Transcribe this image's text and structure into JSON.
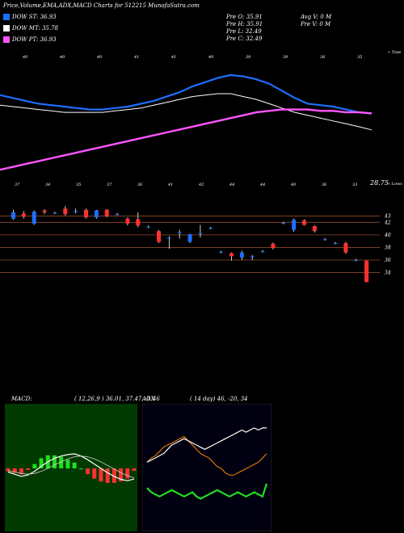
{
  "header": {
    "title": "Price,Volume,EMA,ADX,MACD Charts for 512215 MunafaSutra.com",
    "legend": [
      {
        "label": "DOW ST: 36.93",
        "color": "#1e6fff"
      },
      {
        "label": "DOW MT: 35.78",
        "color": "#ffffff"
      },
      {
        "label": "DOW PT: 36.93",
        "color": "#ff55ff"
      }
    ],
    "stats_left": [
      "Pre  O: 35.91",
      "Pre  H: 35.91",
      "Pre  L: 32.49",
      "Pre  C: 32.49"
    ],
    "stats_right": [
      "Avg V: 0  M",
      "Pre  V: 0  M"
    ]
  },
  "price_panel": {
    "top_note": "« Tops",
    "bottom_note": "« Lows",
    "low_value": "28.75",
    "top_labels": [
      "40",
      "40",
      "40",
      "41",
      "41",
      "40",
      "39",
      "39",
      "38",
      "35"
    ],
    "bottom_labels": [
      "37",
      "34",
      "35",
      "37",
      "36",
      "41",
      "42",
      "44",
      "44",
      "40",
      "36",
      "33"
    ]
  },
  "candle_panel": {
    "axis_labels": [
      "43",
      "42",
      "40",
      "38",
      "36",
      "34"
    ],
    "colors": {
      "up": "#1e6fff",
      "down": "#ff3030"
    }
  },
  "macd_panel": {
    "label": "MACD:",
    "values": "( 12,26,9 ) 36.01, 37.47, -1.46"
  },
  "adx_panel": {
    "label": "ADX",
    "values": "( 14  day) 46,  -20,  34"
  },
  "chart_data": [
    {
      "type": "line",
      "title": "Price,Volume,EMA,ADX,MACD Charts for 512215 MunafaSutra.com",
      "series": [
        {
          "name": "DOW ST",
          "values": [
            38.2,
            38.0,
            37.8,
            37.6,
            37.5,
            37.4,
            37.3,
            37.2,
            37.2,
            37.3,
            37.4,
            37.6,
            37.8,
            38.1,
            38.4,
            38.8,
            39.1,
            39.4,
            39.6,
            39.5,
            39.3,
            39.0,
            38.5,
            38.0,
            37.6,
            37.5,
            37.4,
            37.2,
            37.0,
            36.93
          ]
        },
        {
          "name": "DOW MT",
          "values": [
            37.5,
            37.4,
            37.3,
            37.2,
            37.1,
            37.0,
            37.0,
            37.0,
            37.0,
            37.1,
            37.2,
            37.3,
            37.5,
            37.7,
            37.9,
            38.1,
            38.2,
            38.3,
            38.3,
            38.1,
            37.9,
            37.6,
            37.3,
            37.0,
            36.8,
            36.6,
            36.4,
            36.2,
            36.0,
            35.78
          ]
        },
        {
          "name": "DOW PT",
          "values": [
            33.0,
            33.2,
            33.4,
            33.6,
            33.8,
            34.0,
            34.2,
            34.4,
            34.6,
            34.8,
            35.0,
            35.2,
            35.4,
            35.6,
            35.8,
            36.0,
            36.2,
            36.4,
            36.6,
            36.8,
            37.0,
            37.1,
            37.2,
            37.2,
            37.2,
            37.1,
            37.1,
            37.0,
            37.0,
            36.93
          ]
        }
      ]
    },
    {
      "type": "bar",
      "candles": [
        {
          "o": 42.6,
          "c": 43.6,
          "h": 44.0,
          "l": 42.4
        },
        {
          "o": 43.4,
          "c": 42.9,
          "h": 43.8,
          "l": 42.6
        },
        {
          "o": 41.8,
          "c": 43.7,
          "h": 43.9,
          "l": 41.6
        },
        {
          "o": 43.9,
          "c": 43.6,
          "h": 44.1,
          "l": 43.3
        },
        {
          "o": 43.5,
          "c": 43.5,
          "h": 43.7,
          "l": 43.3
        },
        {
          "o": 44.2,
          "c": 43.3,
          "h": 44.6,
          "l": 43.1
        },
        {
          "o": 43.8,
          "c": 43.8,
          "h": 44.2,
          "l": 43.4
        },
        {
          "o": 44.0,
          "c": 42.8,
          "h": 44.2,
          "l": 42.6
        },
        {
          "o": 42.8,
          "c": 43.9,
          "h": 44.0,
          "l": 42.6
        },
        {
          "o": 44.0,
          "c": 43.0,
          "h": 44.1,
          "l": 42.8
        },
        {
          "o": 43.3,
          "c": 43.3,
          "h": 43.5,
          "l": 43.1
        },
        {
          "o": 42.6,
          "c": 41.8,
          "h": 42.8,
          "l": 41.5
        },
        {
          "o": 42.5,
          "c": 41.5,
          "h": 43.6,
          "l": 41.2
        },
        {
          "o": 41.3,
          "c": 41.3,
          "h": 41.5,
          "l": 41.1
        },
        {
          "o": 40.6,
          "c": 38.9,
          "h": 40.8,
          "l": 38.7
        },
        {
          "o": 39.5,
          "c": 39.5,
          "h": 39.8,
          "l": 37.8
        },
        {
          "o": 40.4,
          "c": 40.4,
          "h": 40.8,
          "l": 39.4
        },
        {
          "o": 38.9,
          "c": 40.1,
          "h": 40.2,
          "l": 38.7
        },
        {
          "o": 40.3,
          "c": 40.3,
          "h": 41.6,
          "l": 39.6
        },
        {
          "o": 41.1,
          "c": 41.1,
          "h": 41.3,
          "l": 40.9
        },
        {
          "o": 37.3,
          "c": 37.3,
          "h": 37.5,
          "l": 37.1
        },
        {
          "o": 37.1,
          "c": 36.6,
          "h": 37.2,
          "l": 35.9
        },
        {
          "o": 36.4,
          "c": 37.2,
          "h": 37.5,
          "l": 36.0
        },
        {
          "o": 36.6,
          "c": 36.6,
          "h": 36.8,
          "l": 36.0
        },
        {
          "o": 37.4,
          "c": 37.4,
          "h": 37.6,
          "l": 37.2
        },
        {
          "o": 38.6,
          "c": 37.9,
          "h": 38.8,
          "l": 37.7
        },
        {
          "o": 41.9,
          "c": 41.9,
          "h": 42.1,
          "l": 41.7
        },
        {
          "o": 40.8,
          "c": 42.4,
          "h": 42.6,
          "l": 40.5
        },
        {
          "o": 42.3,
          "c": 41.6,
          "h": 42.5,
          "l": 41.5
        },
        {
          "o": 41.4,
          "c": 40.6,
          "h": 41.5,
          "l": 40.4
        },
        {
          "o": 39.3,
          "c": 39.3,
          "h": 39.5,
          "l": 39.1
        },
        {
          "o": 38.7,
          "c": 38.7,
          "h": 38.9,
          "l": 38.5
        },
        {
          "o": 38.7,
          "c": 37.2,
          "h": 38.9,
          "l": 37.0
        },
        {
          "o": 36.0,
          "c": 36.0,
          "h": 36.2,
          "l": 35.8
        },
        {
          "o": 35.91,
          "c": 32.49,
          "h": 35.91,
          "l": 32.49
        }
      ]
    },
    {
      "type": "line",
      "series": [
        {
          "name": "MACD",
          "values": [
            -0.5,
            -0.8,
            -1.1,
            -0.9,
            -0.4,
            0.3,
            0.9,
            1.4,
            1.7,
            1.9,
            2.0,
            1.7,
            1.2,
            0.6,
            0.0,
            -0.6,
            -1.1,
            -1.5,
            -1.7,
            -1.46
          ]
        },
        {
          "name": "Signal",
          "values": [
            -0.3,
            -0.5,
            -0.7,
            -0.8,
            -0.7,
            -0.4,
            0.0,
            0.5,
            0.9,
            1.3,
            1.6,
            1.7,
            1.6,
            1.3,
            0.9,
            0.4,
            -0.1,
            -0.6,
            -1.0,
            -1.3
          ]
        }
      ]
    },
    {
      "type": "line",
      "series": [
        {
          "name": "ADX",
          "values": [
            30,
            32,
            33,
            35,
            37,
            38,
            39,
            40,
            41,
            42,
            40,
            38,
            36,
            34,
            33,
            32,
            30,
            28,
            27,
            25,
            24,
            24,
            25,
            26,
            27,
            28,
            29,
            30,
            32,
            34
          ]
        },
        {
          "name": "+DI",
          "values": [
            18,
            16,
            15,
            14,
            15,
            16,
            17,
            16,
            15,
            14,
            15,
            16,
            14,
            13,
            14,
            15,
            16,
            17,
            16,
            15,
            14,
            15,
            16,
            15,
            14,
            15,
            16,
            15,
            14,
            20
          ]
        },
        {
          "name": "-DI",
          "values": [
            30,
            31,
            32,
            33,
            34,
            36,
            38,
            39,
            40,
            41,
            40,
            39,
            38,
            37,
            36,
            37,
            38,
            39,
            40,
            41,
            42,
            43,
            44,
            45,
            44,
            45,
            46,
            45,
            46,
            46
          ]
        }
      ]
    }
  ]
}
